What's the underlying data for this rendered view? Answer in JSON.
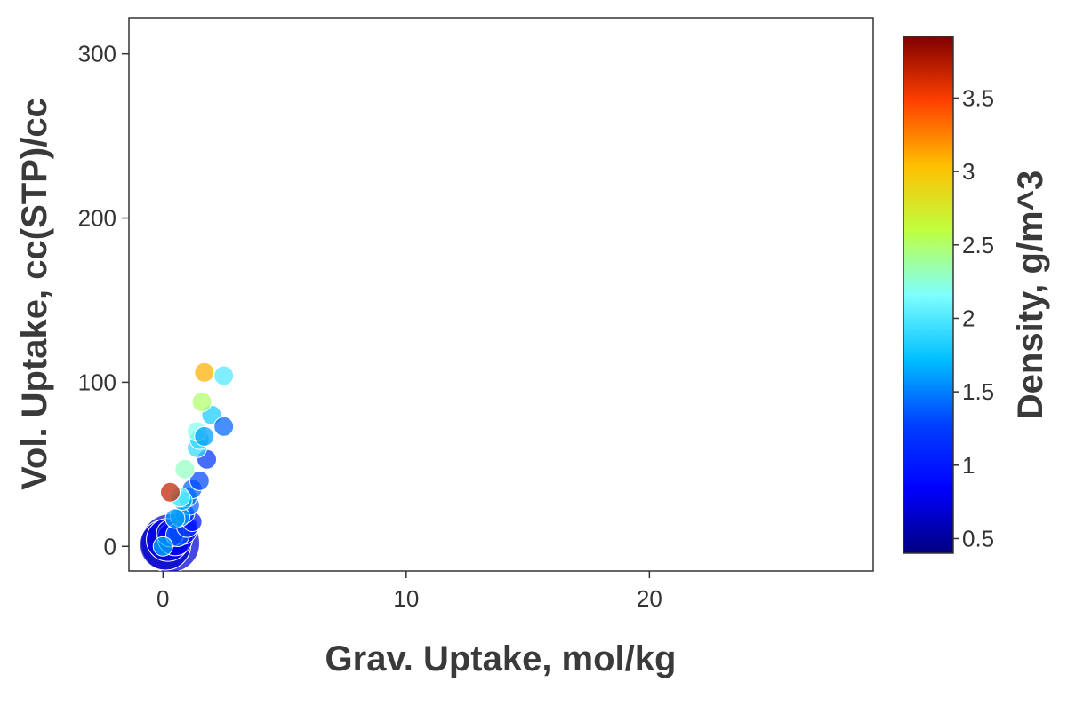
{
  "chart_data": {
    "type": "scatter",
    "xlabel": "Grav. Uptake, mol/kg",
    "ylabel": "Vol. Uptake, cc(STP)/cc",
    "xlim": [
      -1.4,
      29.2
    ],
    "ylim": [
      -15,
      322
    ],
    "x_ticks": [
      0,
      10,
      20
    ],
    "y_ticks": [
      0,
      100,
      200,
      300
    ],
    "grid": false,
    "colorbar": {
      "label": "Density, g/m^3",
      "min": 0.4,
      "max": 3.92,
      "ticks": [
        {
          "value": 0.5,
          "label": "0.5"
        },
        {
          "value": 1,
          "label": "1"
        },
        {
          "value": 1.5,
          "label": "1.5"
        },
        {
          "value": 2,
          "label": "2"
        },
        {
          "value": 2.5,
          "label": "2.5"
        },
        {
          "value": 3,
          "label": "3"
        },
        {
          "value": 3.5,
          "label": "3.5"
        }
      ],
      "colormap": "jet"
    },
    "points": [
      {
        "x": 0.3,
        "y": 2,
        "density": 0.7,
        "size": 3.0
      },
      {
        "x": 0.1,
        "y": 1,
        "density": 0.65,
        "size": 2.6
      },
      {
        "x": 0.2,
        "y": 4,
        "density": 0.75,
        "size": 2.2
      },
      {
        "x": 0.5,
        "y": 5,
        "density": 0.8,
        "size": 1.8
      },
      {
        "x": 0.8,
        "y": 10,
        "density": 0.85,
        "size": 1.5
      },
      {
        "x": 0.3,
        "y": 8,
        "density": 0.9,
        "size": 1.4
      },
      {
        "x": 1.2,
        "y": 15,
        "density": 0.95,
        "size": 1.0
      },
      {
        "x": 1.0,
        "y": 12,
        "density": 1.2,
        "size": 1.1
      },
      {
        "x": 0.6,
        "y": 7,
        "density": 1.4,
        "size": 1.2
      },
      {
        "x": 0.9,
        "y": 20,
        "density": 1.3,
        "size": 1.0
      },
      {
        "x": 1.1,
        "y": 25,
        "density": 1.4,
        "size": 1.0
      },
      {
        "x": 0.7,
        "y": 18,
        "density": 1.6,
        "size": 1.0
      },
      {
        "x": 1.0,
        "y": 30,
        "density": 1.5,
        "size": 1.0
      },
      {
        "x": 1.2,
        "y": 35,
        "density": 1.4,
        "size": 1.0
      },
      {
        "x": 0.5,
        "y": 17,
        "density": 1.6,
        "size": 1.0
      },
      {
        "x": 0.8,
        "y": 28,
        "density": 1.7,
        "size": 1.0
      },
      {
        "x": 0.7,
        "y": 30,
        "density": 2.1,
        "size": 1.0
      },
      {
        "x": 1.5,
        "y": 40,
        "density": 1.3,
        "size": 1.0
      },
      {
        "x": 0.9,
        "y": 47,
        "density": 2.3,
        "size": 1.0
      },
      {
        "x": 0.3,
        "y": 33,
        "density": 3.7,
        "size": 1.0
      },
      {
        "x": 1.8,
        "y": 53,
        "density": 1.2,
        "size": 1.0
      },
      {
        "x": 1.4,
        "y": 60,
        "density": 1.9,
        "size": 1.0
      },
      {
        "x": 1.5,
        "y": 65,
        "density": 1.9,
        "size": 1.0
      },
      {
        "x": 1.4,
        "y": 70,
        "density": 2.2,
        "size": 1.0
      },
      {
        "x": 1.7,
        "y": 67,
        "density": 1.6,
        "size": 1.0
      },
      {
        "x": 2.0,
        "y": 80,
        "density": 1.8,
        "size": 1.0
      },
      {
        "x": 2.5,
        "y": 73,
        "density": 1.4,
        "size": 1.0
      },
      {
        "x": 1.6,
        "y": 88,
        "density": 2.5,
        "size": 1.0
      },
      {
        "x": 1.7,
        "y": 106,
        "density": 3.1,
        "size": 1.0
      },
      {
        "x": 2.5,
        "y": 104,
        "density": 2.0,
        "size": 1.0
      },
      {
        "x": 0.0,
        "y": 0,
        "density": 1.7,
        "size": 1.0
      }
    ]
  }
}
